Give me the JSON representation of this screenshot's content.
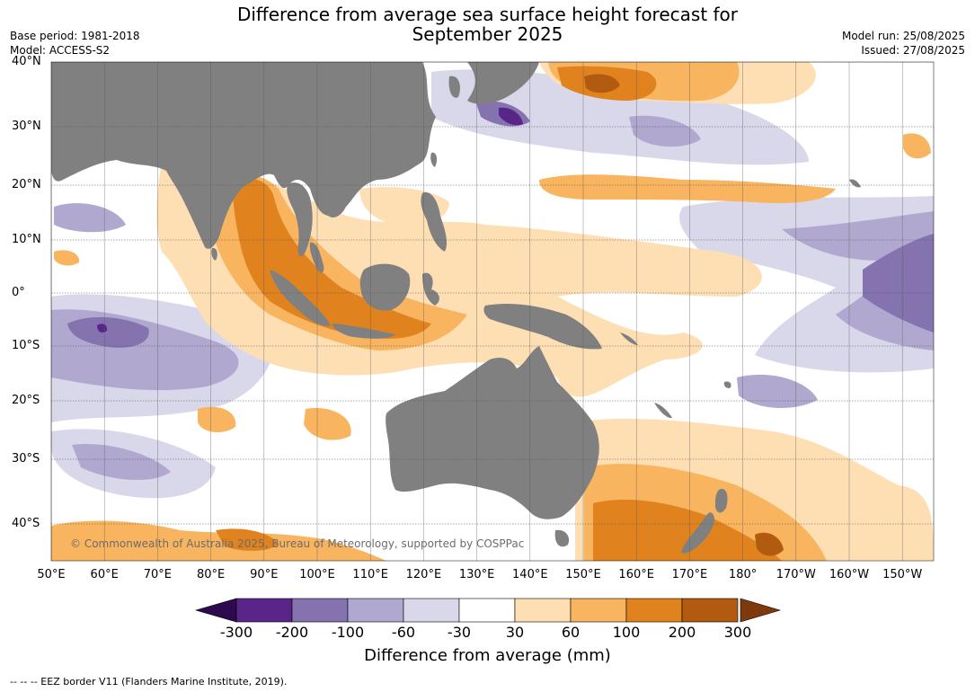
{
  "title_line1": "Difference from average sea surface height forecast for",
  "title_line2": "September 2025",
  "meta_left": {
    "base_period": "Base period: 1981-2018",
    "model": "Model: ACCESS-S2"
  },
  "meta_right": {
    "model_run": "Model run: 25/08/2025",
    "issued": "Issued: 27/08/2025"
  },
  "lat_labels": [
    "40°N",
    "30°N",
    "20°N",
    "10°N",
    "0°",
    "10°S",
    "20°S",
    "30°S",
    "40°S"
  ],
  "lon_labels": [
    "50°E",
    "60°E",
    "70°E",
    "80°E",
    "90°E",
    "100°E",
    "110°E",
    "120°E",
    "130°E",
    "140°E",
    "150°E",
    "160°E",
    "170°E",
    "180°",
    "170°W",
    "160°W",
    "150°W"
  ],
  "copyright": "© Commonwealth of Australia 2025, Bureau of Meteorology, supported by COSPPac",
  "colorbar": {
    "labels": [
      "-300",
      "-200",
      "-100",
      "-60",
      "-30",
      "30",
      "60",
      "100",
      "200",
      "300"
    ],
    "colors": [
      "#5a2588",
      "#8473ae",
      "#b0a8cf",
      "#d8d8ea",
      "#ffffff",
      "#fedfb4",
      "#f8b45f",
      "#e0831e",
      "#b15a10"
    ],
    "under_color": "#2d0a4e",
    "over_color": "#7e3a0c",
    "title": "Difference from average (mm)"
  },
  "land_color": "#808080",
  "footnote": "--  --  -- EEZ border V11 (Flanders Marine Institute, 2019)."
}
